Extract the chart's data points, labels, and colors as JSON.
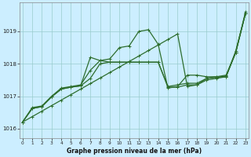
{
  "xlabel": "Graphe pression niveau de la mer (hPa)",
  "background_color": "#cceeff",
  "grid_color": "#99cccc",
  "line_color": "#2d6e2d",
  "ylim": [
    1015.7,
    1019.9
  ],
  "yticks": [
    1016,
    1017,
    1018,
    1019
  ],
  "xlim": [
    -0.3,
    23.3
  ],
  "xticks": [
    0,
    1,
    2,
    3,
    4,
    5,
    6,
    7,
    8,
    9,
    10,
    11,
    12,
    13,
    14,
    15,
    16,
    17,
    18,
    19,
    20,
    21,
    22,
    23
  ],
  "series": {
    "line_straight": [
      1016.2,
      1016.37,
      1016.54,
      1016.71,
      1016.88,
      1017.05,
      1017.22,
      1017.39,
      1017.56,
      1017.73,
      1017.9,
      1018.07,
      1018.24,
      1018.41,
      1018.58,
      1018.75,
      1018.92,
      1017.3,
      1017.35,
      1017.5,
      1017.55,
      1017.6,
      1018.35,
      1019.6
    ],
    "line_peak": [
      1016.2,
      1016.65,
      1016.7,
      1017.0,
      1017.25,
      1017.3,
      1017.35,
      1017.8,
      1018.1,
      1018.15,
      1018.5,
      1018.55,
      1019.0,
      1019.05,
      1018.6,
      1017.25,
      1017.3,
      1017.65,
      1017.65,
      1017.6,
      1017.6,
      1017.6,
      1018.4,
      1019.55
    ],
    "line_mid1": [
      1016.2,
      1016.62,
      1016.68,
      1016.98,
      1017.22,
      1017.28,
      1017.32,
      1018.2,
      1018.1,
      1018.05,
      1018.05,
      1018.05,
      1018.05,
      1018.05,
      1018.05,
      1017.3,
      1017.35,
      1017.4,
      1017.4,
      1017.55,
      1017.6,
      1017.65,
      1018.35,
      1019.55
    ],
    "line_mid2": [
      1016.2,
      1016.62,
      1016.68,
      1016.98,
      1017.22,
      1017.28,
      1017.32,
      1017.55,
      1018.0,
      1018.05,
      1018.05,
      1018.05,
      1018.05,
      1018.05,
      1018.05,
      1017.28,
      1017.28,
      1017.35,
      1017.35,
      1017.55,
      1017.58,
      1017.62,
      1018.35,
      1019.55
    ]
  }
}
